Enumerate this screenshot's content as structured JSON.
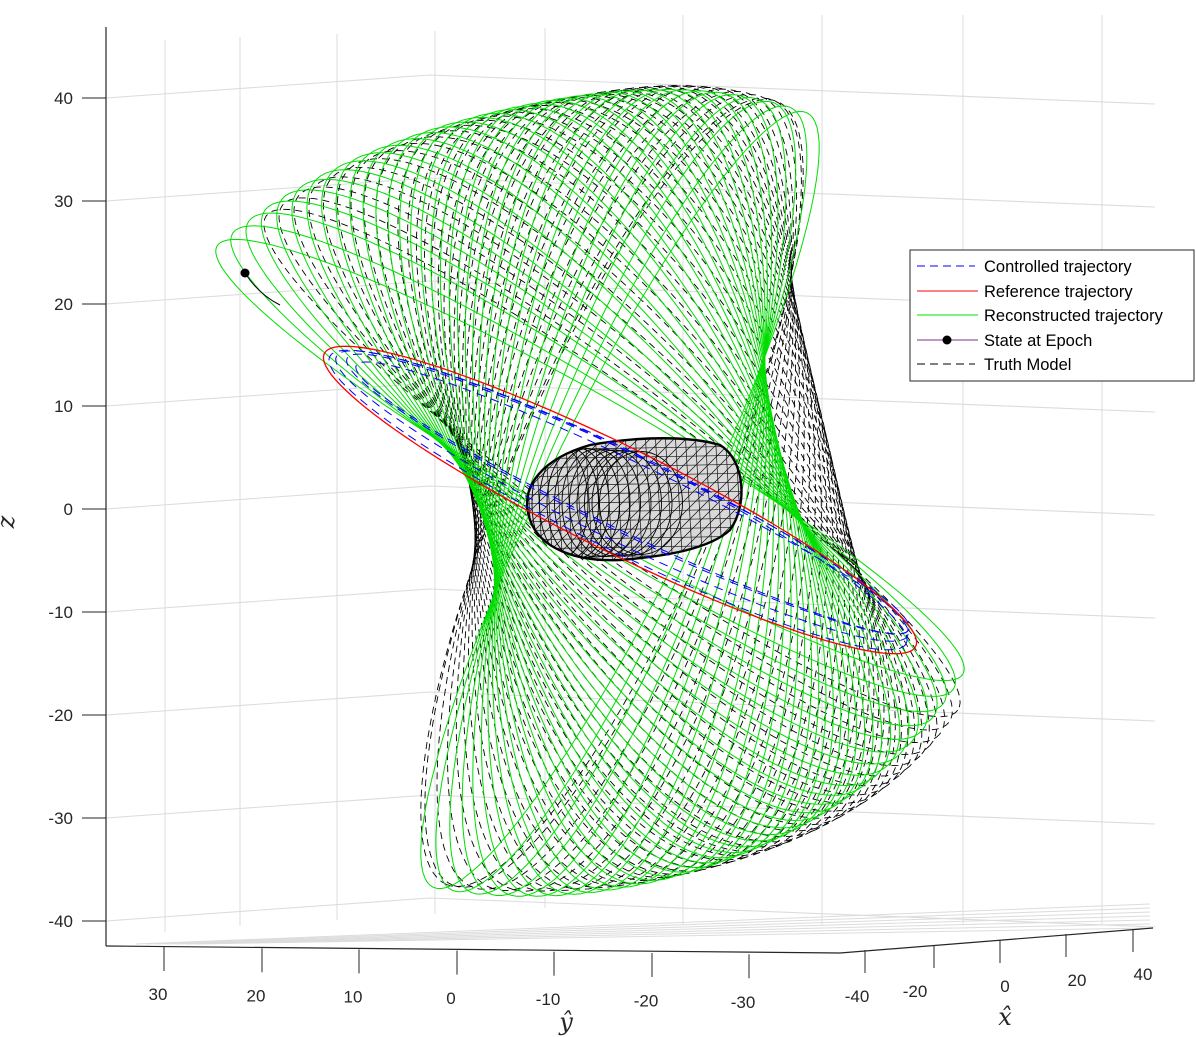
{
  "chart_data": {
    "type": "line3d",
    "title": "",
    "description": "3D orbital trajectory plot around an elongated asteroid body (triangulated mesh) showing precessing orbits",
    "axes": {
      "x": {
        "label": "x̂",
        "ticks": [
          -40,
          -20,
          0,
          20,
          40
        ],
        "range": [
          -45,
          45
        ]
      },
      "y": {
        "label": "ŷ",
        "ticks": [
          30,
          20,
          10,
          0,
          -10,
          -20,
          -30
        ],
        "range": [
          -35,
          35
        ]
      },
      "z": {
        "label": "ẑ",
        "ticks": [
          40,
          30,
          20,
          10,
          0,
          -10,
          -20,
          -30,
          -40
        ],
        "range": [
          -42,
          47
        ]
      }
    },
    "grid": true,
    "legend": {
      "position": "northeast-outside-inset",
      "entries": [
        {
          "label": "Controlled trajectory",
          "color": "#0000ff",
          "style": "dashed"
        },
        {
          "label": "Reference trajectory",
          "color": "#ff0000",
          "style": "solid"
        },
        {
          "label": "Reconstructed trajectory",
          "color": "#00e000",
          "style": "solid"
        },
        {
          "label": "State at Epoch",
          "color": "#7e2f8e",
          "style": "solid-marker",
          "marker": "filled-circle",
          "marker_color": "#000000"
        },
        {
          "label": "Truth Model",
          "color": "#000000",
          "style": "dashed"
        }
      ]
    },
    "series": [
      {
        "name": "Controlled trajectory",
        "kind": "near-equatorial ellipse (several passes)",
        "approx_extent": {
          "z": [
            -17,
            18
          ]
        }
      },
      {
        "name": "Reference trajectory",
        "kind": "single tilted ellipse",
        "approx_extent": {
          "z": [
            -17,
            18
          ]
        }
      },
      {
        "name": "Reconstructed trajectory",
        "kind": "family of ~40 precessing ellipses",
        "approx_extent": {
          "z": [
            -41,
            47
          ]
        }
      },
      {
        "name": "State at Epoch",
        "kind": "point",
        "screen_value": {
          "z_approx": 23
        }
      },
      {
        "name": "Truth Model",
        "kind": "family of ~40 precessing ellipses",
        "approx_extent": {
          "z": [
            -41,
            46
          ]
        }
      }
    ],
    "body": {
      "name": "asteroid",
      "shape": "elongated triangulated mesh",
      "fill": "#d9d9d9",
      "edge": "#000000"
    }
  },
  "colors": {
    "controlled": "#0000ff",
    "reference": "#ff0000",
    "reconstructed": "#00dd00",
    "truth": "#000000",
    "epoch_line": "#7e2f8e",
    "grid": "#dcdcdc",
    "axis": "#262626"
  },
  "labels": {
    "zaxis_title": "ẑ",
    "yaxis_title": "ŷ",
    "xaxis_title": "x̂",
    "z_ticks": [
      "40",
      "30",
      "20",
      "10",
      "0",
      "-10",
      "-20",
      "-30",
      "-40"
    ],
    "y_ticks": [
      "30",
      "20",
      "10",
      "0",
      "-10",
      "-20",
      "-30"
    ],
    "x_ticks": [
      "-40",
      "-20",
      "0",
      "20",
      "40"
    ]
  },
  "legend": {
    "items": [
      {
        "label": "Controlled trajectory"
      },
      {
        "label": "Reference trajectory"
      },
      {
        "label": "Reconstructed trajectory"
      },
      {
        "label": "State at Epoch"
      },
      {
        "label": "Truth Model"
      }
    ]
  }
}
